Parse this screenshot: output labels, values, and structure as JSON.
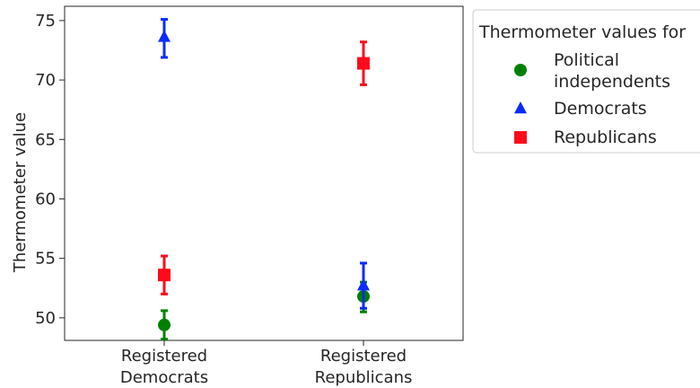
{
  "chart_data": {
    "type": "scatter",
    "ylabel": "Thermometer value",
    "xlabel": "",
    "categories": [
      [
        "Registered",
        "Democrats"
      ],
      [
        "Registered",
        "Republicans"
      ]
    ],
    "ylim": [
      48.1,
      76.2
    ],
    "yticks": [
      50,
      55,
      60,
      65,
      70,
      75
    ],
    "grid": false,
    "legend": {
      "title": "Thermometer values for",
      "placement": "outside-right-top"
    },
    "series": [
      {
        "name": [
          "Political",
          "independents"
        ],
        "marker": "circle",
        "color": "#008000",
        "points": [
          {
            "category": 0,
            "value": 49.4,
            "err_low": 48.2,
            "err_high": 50.6
          },
          {
            "category": 1,
            "value": 51.8,
            "err_low": 50.5,
            "err_high": 53.0
          }
        ]
      },
      {
        "name": [
          "Democrats"
        ],
        "marker": "triangle",
        "color": "#0a2bff",
        "points": [
          {
            "category": 0,
            "value": 73.6,
            "err_low": 71.9,
            "err_high": 75.1
          },
          {
            "category": 1,
            "value": 52.7,
            "err_low": 50.8,
            "err_high": 54.6
          }
        ]
      },
      {
        "name": [
          "Republicans"
        ],
        "marker": "square",
        "color": "#ff0b1c",
        "points": [
          {
            "category": 0,
            "value": 53.6,
            "err_low": 52.0,
            "err_high": 55.2
          },
          {
            "category": 1,
            "value": 71.4,
            "err_low": 69.6,
            "err_high": 73.2
          }
        ]
      }
    ]
  }
}
